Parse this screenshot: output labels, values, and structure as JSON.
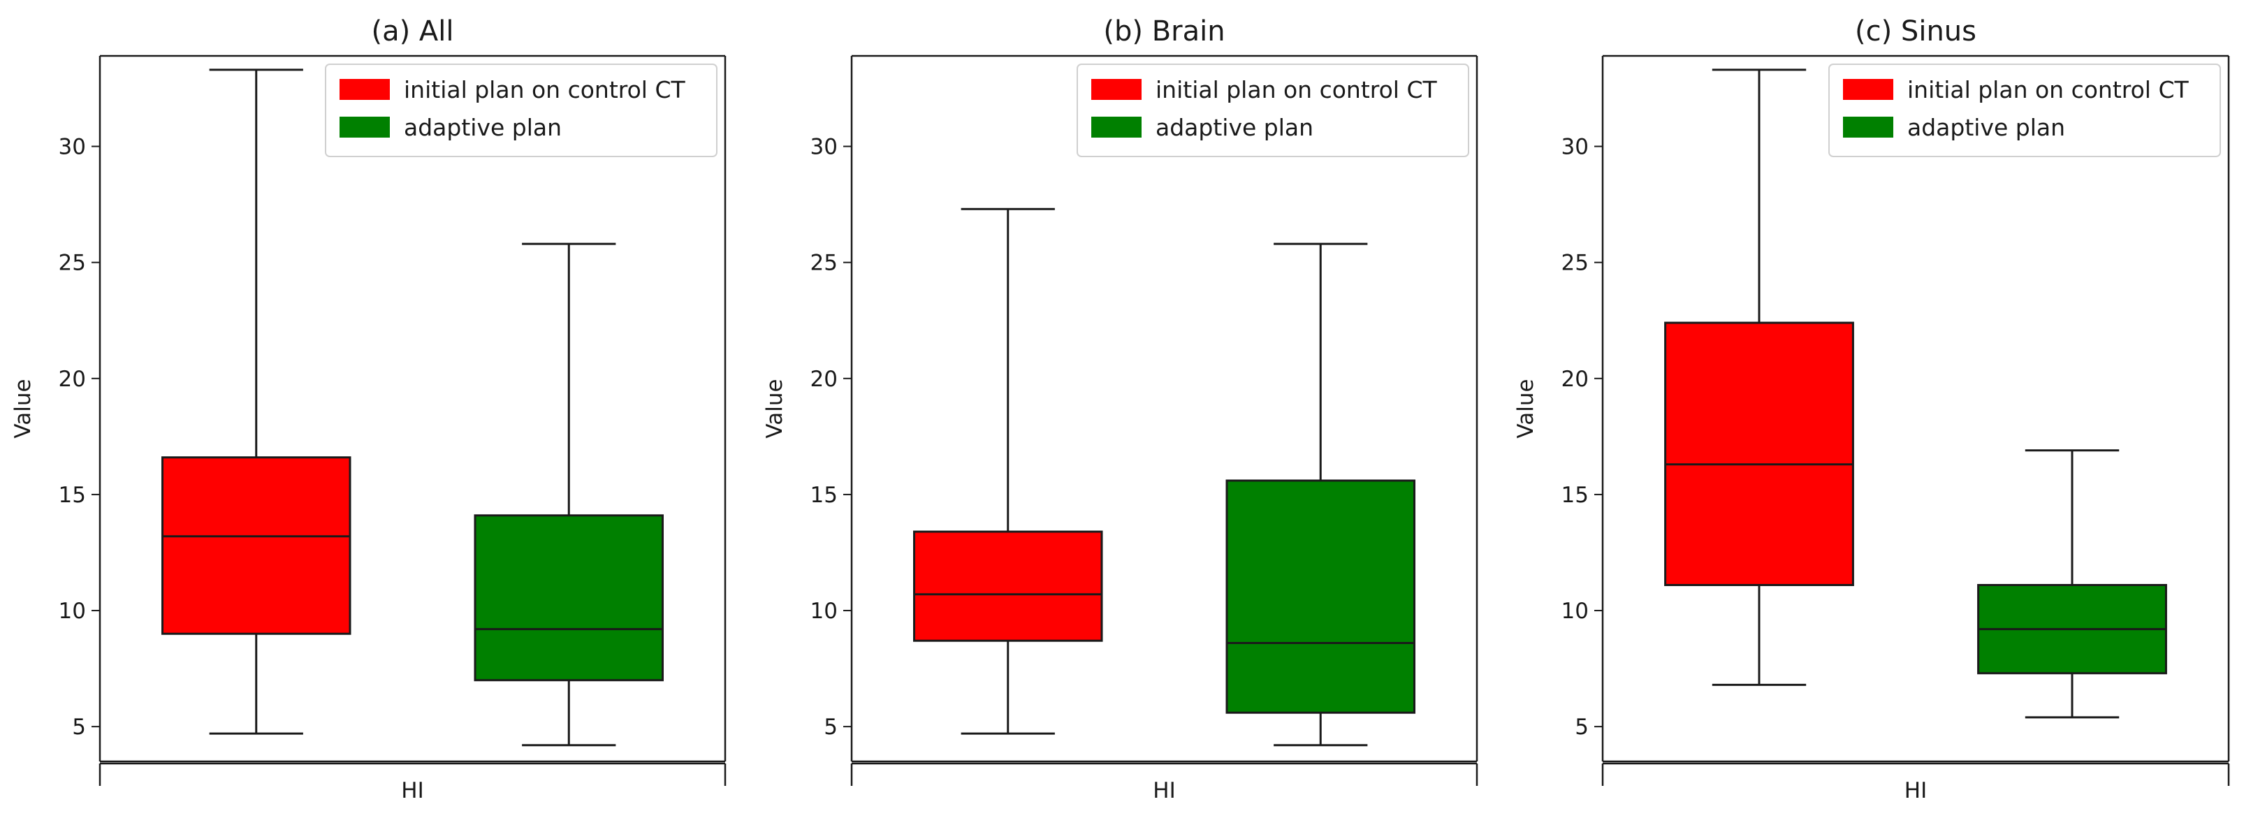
{
  "chart_data": [
    {
      "type": "boxplot",
      "title": "(a) All",
      "xlabel": "HI",
      "ylabel": "Value",
      "ylim": [
        3.5,
        33.9
      ],
      "yticks": [
        5,
        10,
        15,
        20,
        25,
        30
      ],
      "legend_position": "top-right",
      "series": [
        {
          "name": "initial plan on control CT",
          "color": "#ff0000",
          "whisker_low": 4.7,
          "q1": 9.0,
          "median": 13.2,
          "q3": 16.6,
          "whisker_high": 33.3
        },
        {
          "name": "adaptive plan",
          "color": "#008000",
          "whisker_low": 4.2,
          "q1": 7.0,
          "median": 9.2,
          "q3": 14.1,
          "whisker_high": 25.8
        }
      ]
    },
    {
      "type": "boxplot",
      "title": "(b) Brain",
      "xlabel": "HI",
      "ylabel": "Value",
      "ylim": [
        3.5,
        33.9
      ],
      "yticks": [
        5,
        10,
        15,
        20,
        25,
        30
      ],
      "legend_position": "top-right",
      "series": [
        {
          "name": "initial plan on control CT",
          "color": "#ff0000",
          "whisker_low": 4.7,
          "q1": 8.7,
          "median": 10.7,
          "q3": 13.4,
          "whisker_high": 27.3
        },
        {
          "name": "adaptive plan",
          "color": "#008000",
          "whisker_low": 4.2,
          "q1": 5.6,
          "median": 8.6,
          "q3": 15.6,
          "whisker_high": 25.8
        }
      ]
    },
    {
      "type": "boxplot",
      "title": "(c) Sinus",
      "xlabel": "HI",
      "ylabel": "Value",
      "ylim": [
        3.5,
        33.9
      ],
      "yticks": [
        5,
        10,
        15,
        20,
        25,
        30
      ],
      "legend_position": "top-right",
      "series": [
        {
          "name": "initial plan on control CT",
          "color": "#ff0000",
          "whisker_low": 6.8,
          "q1": 11.1,
          "median": 16.3,
          "q3": 22.4,
          "whisker_high": 33.3
        },
        {
          "name": "adaptive plan",
          "color": "#008000",
          "whisker_low": 5.4,
          "q1": 7.3,
          "median": 9.2,
          "q3": 11.1,
          "whisker_high": 16.9
        }
      ]
    }
  ]
}
